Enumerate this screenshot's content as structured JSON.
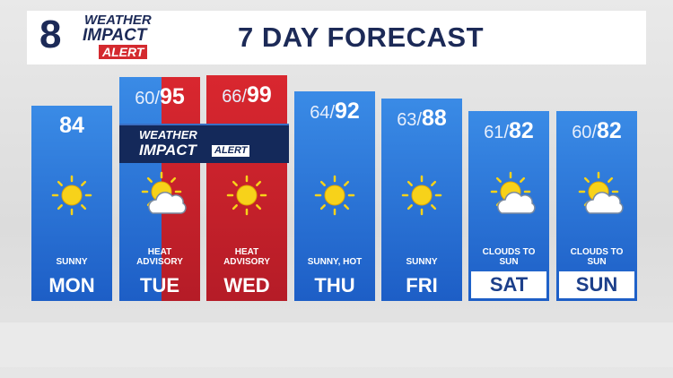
{
  "header": {
    "logo_number": "8",
    "logo_line1": "WEATHER",
    "logo_line2": "IMPACT",
    "logo_line3": "ALERT",
    "title": "7 DAY FORECAST"
  },
  "banner": {
    "line1": "WEATHER",
    "line2": "IMPACT",
    "line3": "ALERT"
  },
  "temp_separator": "/",
  "days": [
    {
      "day": "MON",
      "low": null,
      "high": 84,
      "condition": "SUNNY"
    },
    {
      "day": "TUE",
      "low": 60,
      "high": 95,
      "condition": "HEAT ADVISORY"
    },
    {
      "day": "WED",
      "low": 66,
      "high": 99,
      "condition": "HEAT ADVISORY"
    },
    {
      "day": "THU",
      "low": 64,
      "high": 92,
      "condition": "SUNNY, HOT"
    },
    {
      "day": "FRI",
      "low": 63,
      "high": 88,
      "condition": "SUNNY"
    },
    {
      "day": "SAT",
      "low": 61,
      "high": 82,
      "condition": "CLOUDS TO SUN"
    },
    {
      "day": "SUN",
      "low": 60,
      "high": 82,
      "condition": "CLOUDS TO SUN"
    }
  ]
}
